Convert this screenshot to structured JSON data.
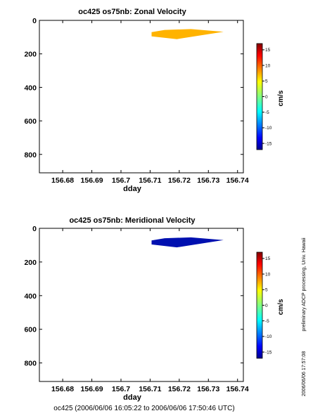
{
  "chart_data": [
    {
      "type": "heatmap",
      "title": "oc425 os75nb: Zonal Velocity",
      "xlabel": "dday",
      "ylabel": "",
      "xlim": [
        156.672,
        156.742
      ],
      "ylim": [
        910,
        0
      ],
      "y_reversed": true,
      "xticks": [
        "156.68",
        "156.69",
        "156.7",
        "156.71",
        "156.72",
        "156.73",
        "156.74"
      ],
      "xtick_values": [
        156.68,
        156.69,
        156.7,
        156.71,
        156.72,
        156.73,
        156.74
      ],
      "yticks": [
        "0",
        "200",
        "400",
        "600",
        "800"
      ],
      "ytick_values": [
        0,
        200,
        400,
        600,
        800
      ],
      "patch": {
        "value": 8,
        "color": "#ffb300",
        "polygon": [
          [
            156.7105,
            70
          ],
          [
            156.7105,
            95
          ],
          [
            156.7192,
            112
          ],
          [
            156.7352,
            68
          ],
          [
            156.724,
            52
          ],
          [
            156.715,
            57
          ]
        ]
      },
      "colorbar": {
        "label": "cm/s",
        "min": -17,
        "max": 17,
        "ticks": [
          "15",
          "10",
          "5",
          "0",
          "-5",
          "-10",
          "-15"
        ],
        "tick_values": [
          15,
          10,
          5,
          0,
          -5,
          -10,
          -15
        ]
      }
    },
    {
      "type": "heatmap",
      "title": "oc425 os75nb: Meridional Velocity",
      "xlabel": "dday",
      "ylabel": "",
      "xlim": [
        156.672,
        156.742
      ],
      "ylim": [
        910,
        0
      ],
      "y_reversed": true,
      "xticks": [
        "156.68",
        "156.69",
        "156.7",
        "156.71",
        "156.72",
        "156.73",
        "156.74"
      ],
      "xtick_values": [
        156.68,
        156.69,
        156.7,
        156.71,
        156.72,
        156.73,
        156.74
      ],
      "yticks": [
        "0",
        "200",
        "400",
        "600",
        "800"
      ],
      "ytick_values": [
        0,
        200,
        400,
        600,
        800
      ],
      "patch": {
        "value": -15,
        "color": "#0010b0",
        "polygon": [
          [
            156.7105,
            72
          ],
          [
            156.7105,
            96
          ],
          [
            156.7192,
            113
          ],
          [
            156.7352,
            70
          ],
          [
            156.724,
            54
          ],
          [
            156.715,
            59
          ]
        ]
      },
      "colorbar": {
        "label": "cm/s",
        "min": -17,
        "max": 17,
        "ticks": [
          "15",
          "10",
          "5",
          "0",
          "-5",
          "-10",
          "-15"
        ],
        "tick_values": [
          15,
          10,
          5,
          0,
          -5,
          -10,
          -15
        ]
      }
    }
  ],
  "side_note": "preliminary ADCP processing,   Univ. Hawaii",
  "timestamp": "2006/06/06 17:57:08",
  "footer": "oc425 (2006/06/06 16:05:22 to 2006/06/06 17:50:46 UTC)"
}
